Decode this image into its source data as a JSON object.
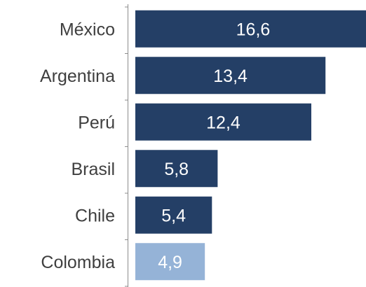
{
  "chart_data": {
    "type": "bar",
    "orientation": "horizontal",
    "categories": [
      "México",
      "Argentina",
      "Perú",
      "Brasil",
      "Chile",
      "Colombia"
    ],
    "values": [
      16.6,
      13.4,
      12.4,
      5.8,
      5.4,
      4.9
    ],
    "value_labels": [
      "16,6",
      "13,4",
      "12,4",
      "5,8",
      "5,4",
      "4,9"
    ],
    "colors": [
      "#243f66",
      "#243f66",
      "#243f66",
      "#243f66",
      "#243f66",
      "#95b3d7"
    ],
    "xlim": [
      0,
      16.6
    ],
    "grid": false,
    "legend": "none"
  }
}
